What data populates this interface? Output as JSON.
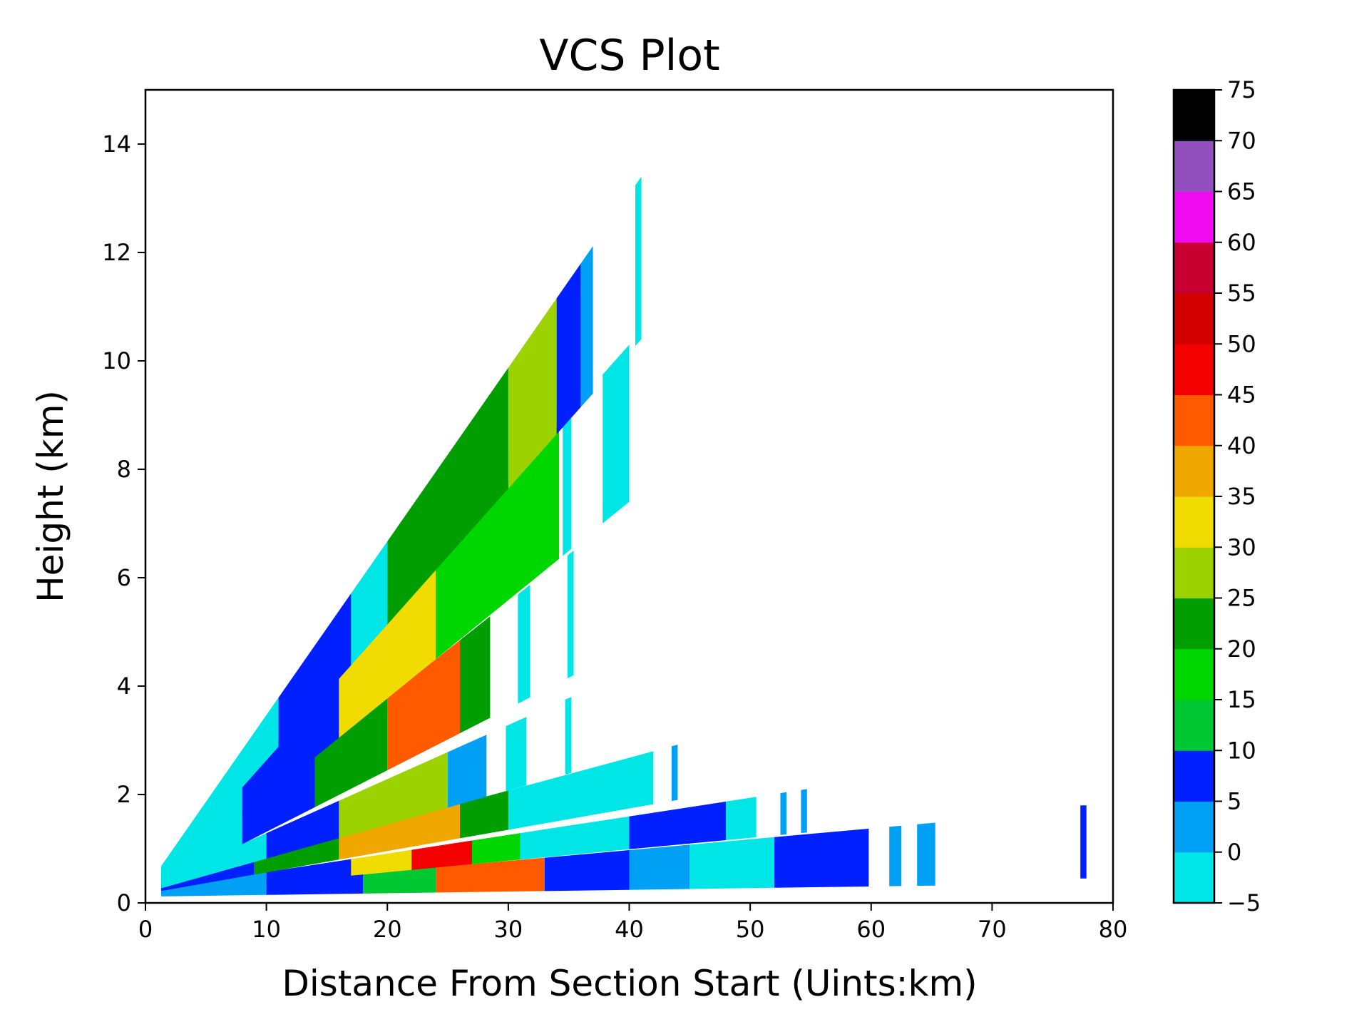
{
  "chart_data": {
    "type": "heatmap",
    "title": "VCS Plot",
    "xlabel": "Distance From Section Start (Uints:km)",
    "ylabel": "Height (km)",
    "xlim": [
      0,
      80
    ],
    "ylim": [
      0,
      15
    ],
    "x_ticks": [
      0,
      10,
      20,
      30,
      40,
      50,
      60,
      70,
      80
    ],
    "y_ticks": [
      0,
      2,
      4,
      6,
      8,
      10,
      12,
      14
    ],
    "grid": false,
    "colorbar": {
      "placement": "right",
      "range": [
        -5,
        75
      ],
      "ticks": [
        -5,
        0,
        5,
        10,
        15,
        20,
        25,
        30,
        35,
        40,
        45,
        50,
        55,
        60,
        65,
        70,
        75
      ],
      "levels": [
        {
          "from": -5,
          "to": 0,
          "color": "#00e6e6"
        },
        {
          "from": 0,
          "to": 5,
          "color": "#00a1f5"
        },
        {
          "from": 5,
          "to": 10,
          "color": "#0020ff"
        },
        {
          "from": 10,
          "to": 15,
          "color": "#00c832"
        },
        {
          "from": 15,
          "to": 20,
          "color": "#00d700"
        },
        {
          "from": 20,
          "to": 25,
          "color": "#009e00"
        },
        {
          "from": 25,
          "to": 30,
          "color": "#9bd200"
        },
        {
          "from": 30,
          "to": 35,
          "color": "#f0dc00"
        },
        {
          "from": 35,
          "to": 40,
          "color": "#f0a800"
        },
        {
          "from": 40,
          "to": 45,
          "color": "#ff5a00"
        },
        {
          "from": 45,
          "to": 50,
          "color": "#f50000"
        },
        {
          "from": 50,
          "to": 55,
          "color": "#d20000"
        },
        {
          "from": 55,
          "to": 60,
          "color": "#c80032"
        },
        {
          "from": 60,
          "to": 65,
          "color": "#f00af0"
        },
        {
          "from": 65,
          "to": 70,
          "color": "#9150be"
        },
        {
          "from": 70,
          "to": 75,
          "color": "#000000"
        }
      ]
    },
    "sweeps": [
      {
        "x": [
          1.3,
          65.3
        ],
        "y_bottom": [
          0.12,
          0.32
        ],
        "y_top": [
          0.2,
          1.48
        ],
        "segments": [
          {
            "x0": 1.3,
            "x1": 10,
            "value": 2
          },
          {
            "x0": 10,
            "x1": 18,
            "value": 7
          },
          {
            "x0": 18,
            "x1": 24,
            "value": 12
          },
          {
            "x0": 24,
            "x1": 33,
            "value": 42
          },
          {
            "x0": 33,
            "x1": 40,
            "value": 7
          },
          {
            "x0": 40,
            "x1": 45,
            "value": 2
          },
          {
            "x0": 45,
            "x1": 52,
            "value": -2
          },
          {
            "x0": 52,
            "x1": 59.8,
            "value": 7
          },
          {
            "x0": 61.5,
            "x1": 62.5,
            "value": 2
          },
          {
            "x0": 63.8,
            "x1": 65.3,
            "value": 2
          }
        ]
      },
      {
        "x": [
          1.3,
          54.7
        ],
        "y_bottom": [
          0.17,
          1.3
        ],
        "y_top": [
          0.27,
          2.1
        ],
        "segments": [
          {
            "x0": 1.3,
            "x1": 10,
            "value": 2
          },
          {
            "x0": 10,
            "x1": 17,
            "value": 7
          },
          {
            "x0": 17,
            "x1": 22,
            "value": 32
          },
          {
            "x0": 22,
            "x1": 27,
            "value": 47
          },
          {
            "x0": 27,
            "x1": 31,
            "value": 17
          },
          {
            "x0": 31,
            "x1": 40,
            "value": -2
          },
          {
            "x0": 40,
            "x1": 48,
            "value": 7
          },
          {
            "x0": 48,
            "x1": 50.5,
            "value": -2
          },
          {
            "x0": 52.5,
            "x1": 53,
            "value": 2
          },
          {
            "x0": 54.2,
            "x1": 54.7,
            "value": 2
          }
        ]
      },
      {
        "x": [
          1.3,
          44.0
        ],
        "y_bottom": [
          0.22,
          1.9
        ],
        "y_top": [
          0.34,
          2.92
        ],
        "segments": [
          {
            "x0": 1.3,
            "x1": 9,
            "value": 7
          },
          {
            "x0": 9,
            "x1": 16,
            "value": 22
          },
          {
            "x0": 16,
            "x1": 26,
            "value": 37
          },
          {
            "x0": 26,
            "x1": 30,
            "value": 22
          },
          {
            "x0": 30,
            "x1": 42,
            "value": -2
          },
          {
            "x0": 43.5,
            "x1": 44,
            "value": 2
          }
        ]
      },
      {
        "x": [
          1.3,
          35.2
        ],
        "y_bottom": [
          0.27,
          2.4
        ],
        "y_top": [
          0.42,
          3.8
        ],
        "segments": [
          {
            "x0": 1.3,
            "x1": 10,
            "value": -2
          },
          {
            "x0": 10,
            "x1": 16,
            "value": 7
          },
          {
            "x0": 16,
            "x1": 25,
            "value": 27
          },
          {
            "x0": 25,
            "x1": 28.2,
            "value": 2
          },
          {
            "x0": 29.8,
            "x1": 31.5,
            "value": -2
          },
          {
            "x0": 34.7,
            "x1": 35.2,
            "value": -2
          }
        ]
      },
      {
        "x": [
          1.3,
          35.4
        ],
        "y_bottom": [
          0.32,
          4.2
        ],
        "y_top": [
          0.5,
          6.5
        ],
        "segments": [
          {
            "x0": 1.3,
            "x1": 8,
            "value": -2
          },
          {
            "x0": 8,
            "x1": 14,
            "value": 7
          },
          {
            "x0": 14,
            "x1": 20,
            "value": 22
          },
          {
            "x0": 20,
            "x1": 26,
            "value": 42
          },
          {
            "x0": 26,
            "x1": 28.5,
            "value": 22
          },
          {
            "x0": 30.8,
            "x1": 31.8,
            "value": -2
          },
          {
            "x0": 34.9,
            "x1": 35.4,
            "value": -2
          }
        ]
      },
      {
        "x": [
          1.3,
          40.0
        ],
        "y_bottom": [
          0.38,
          7.4
        ],
        "y_top": [
          0.58,
          10.3
        ],
        "segments": [
          {
            "x0": 1.3,
            "x1": 8,
            "value": -2
          },
          {
            "x0": 8,
            "x1": 16,
            "value": 7
          },
          {
            "x0": 16,
            "x1": 24,
            "value": 32
          },
          {
            "x0": 24,
            "x1": 34.2,
            "value": 17
          },
          {
            "x0": 34.5,
            "x1": 35.2,
            "value": -2
          },
          {
            "x0": 37.8,
            "x1": 40,
            "value": -2
          }
        ]
      },
      {
        "x": [
          1.3,
          41.0
        ],
        "y_bottom": [
          0.45,
          10.4
        ],
        "y_top": [
          0.68,
          13.4
        ],
        "segments": [
          {
            "x0": 1.3,
            "x1": 11,
            "value": -2
          },
          {
            "x0": 11,
            "x1": 17,
            "value": 7
          },
          {
            "x0": 17,
            "x1": 20,
            "value": -2
          },
          {
            "x0": 20,
            "x1": 30,
            "value": 22
          },
          {
            "x0": 30,
            "x1": 34,
            "value": 27
          },
          {
            "x0": 34,
            "x1": 36,
            "value": 7
          },
          {
            "x0": 36,
            "x1": 37,
            "value": 2
          },
          {
            "x0": 40.5,
            "x1": 41,
            "value": -2
          }
        ]
      },
      {
        "x": [
          77.3,
          77.8
        ],
        "y_bottom": [
          0.45,
          0.45
        ],
        "y_top": [
          1.8,
          1.8
        ],
        "segments": [
          {
            "x0": 77.3,
            "x1": 77.8,
            "value": 7
          }
        ]
      }
    ]
  }
}
